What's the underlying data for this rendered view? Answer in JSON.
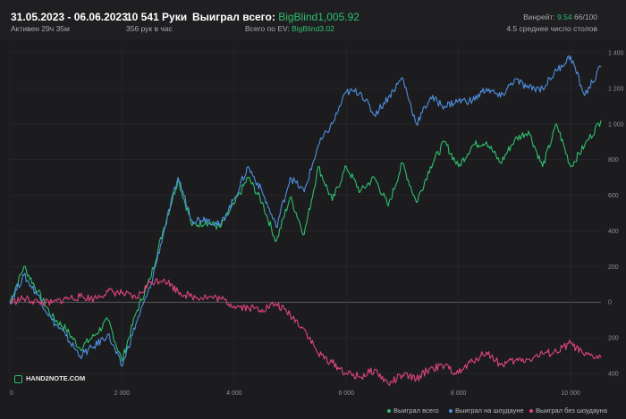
{
  "header": {
    "date_range": "31.05.2023 - 06.06.2023",
    "active": "Активен 29ч 35м",
    "hands": "10 541 Руки",
    "hands_rate": "356 рук в час",
    "won_label": "Выиграл всего:",
    "won_value": "BigBlind1,005.92",
    "ev_label": "Всего по EV:",
    "ev_value": "BigBlind3.02",
    "winrate_label": "Винрейт:",
    "winrate_value": "9.54",
    "winrate_rest": "66/100",
    "tables": "4.5 среднее число столов"
  },
  "logo_text": "HAND2NOTE.COM",
  "colors": {
    "total": "#2dbf6c",
    "showdown": "#4f8fe0",
    "no_showdown": "#e0457b",
    "background": "#1c1c1e"
  },
  "chart_data": {
    "type": "line",
    "xlim": [
      0,
      10541
    ],
    "ylim": [
      -450,
      1450
    ],
    "y_ticks": [
      -400,
      -200,
      0,
      200,
      400,
      600,
      800,
      1000,
      1200,
      1400
    ],
    "y_tick_labels": [
      "400",
      "200",
      "0",
      "200",
      "400",
      "600",
      "800",
      "1 000",
      "1 200",
      "1 400"
    ],
    "x_ticks": [
      0,
      2000,
      4000,
      6000,
      8000,
      10000
    ],
    "x_tick_labels": [
      "0",
      "2 000",
      "4 000",
      "6 000",
      "8 000",
      "10 000"
    ],
    "grid": true,
    "legend_position": "bottom-right",
    "series": [
      {
        "name": "Выиграл всего",
        "color": "#2dbf6c",
        "x": [
          0,
          250,
          500,
          750,
          1000,
          1250,
          1500,
          1750,
          2000,
          2250,
          2500,
          2750,
          3000,
          3250,
          3500,
          3750,
          4000,
          4250,
          4500,
          4750,
          5000,
          5250,
          5500,
          5750,
          6000,
          6250,
          6500,
          6750,
          7000,
          7250,
          7500,
          7750,
          8000,
          8250,
          8500,
          8750,
          9000,
          9250,
          9500,
          9750,
          10000,
          10250,
          10541
        ],
        "y": [
          0,
          200,
          60,
          -80,
          -150,
          -260,
          -190,
          -100,
          -330,
          -60,
          130,
          420,
          690,
          430,
          450,
          420,
          550,
          700,
          560,
          340,
          590,
          380,
          760,
          570,
          760,
          620,
          700,
          540,
          780,
          560,
          760,
          900,
          760,
          880,
          900,
          780,
          910,
          960,
          760,
          1000,
          760,
          880,
          1020
        ]
      },
      {
        "name": "Выиграл на шоудауне",
        "color": "#4f8fe0",
        "x": [
          0,
          250,
          500,
          750,
          1000,
          1250,
          1500,
          1750,
          2000,
          2250,
          2500,
          2750,
          3000,
          3250,
          3500,
          3750,
          4000,
          4250,
          4500,
          4750,
          5000,
          5250,
          5500,
          5750,
          6000,
          6250,
          6500,
          6750,
          7000,
          7250,
          7500,
          7750,
          8000,
          8250,
          8500,
          8750,
          9000,
          9250,
          9500,
          9750,
          10000,
          10250,
          10541
        ],
        "y": [
          0,
          150,
          40,
          -100,
          -190,
          -300,
          -250,
          -180,
          -360,
          -120,
          80,
          400,
          700,
          460,
          470,
          430,
          580,
          760,
          620,
          420,
          700,
          620,
          880,
          1000,
          1180,
          1180,
          1050,
          1150,
          1260,
          1000,
          1150,
          1100,
          1130,
          1130,
          1200,
          1150,
          1250,
          1200,
          1200,
          1300,
          1380,
          1160,
          1320
        ]
      },
      {
        "name": "Выиграл без шоудауна",
        "color": "#e0457b",
        "x": [
          0,
          250,
          500,
          750,
          1000,
          1250,
          1500,
          1750,
          2000,
          2250,
          2500,
          2750,
          3000,
          3250,
          3500,
          3750,
          4000,
          4250,
          4500,
          4750,
          5000,
          5250,
          5500,
          5750,
          6000,
          6250,
          6500,
          6750,
          7000,
          7250,
          7500,
          7750,
          8000,
          8250,
          8500,
          8750,
          9000,
          9250,
          9500,
          9750,
          10000,
          10250,
          10541
        ],
        "y": [
          0,
          20,
          0,
          -5,
          20,
          30,
          20,
          60,
          50,
          20,
          110,
          130,
          60,
          30,
          30,
          20,
          -20,
          -30,
          -40,
          -10,
          -70,
          -150,
          -290,
          -340,
          -400,
          -420,
          -380,
          -460,
          -410,
          -430,
          -370,
          -360,
          -400,
          -330,
          -280,
          -350,
          -330,
          -320,
          -290,
          -280,
          -230,
          -300,
          -310
        ]
      }
    ]
  }
}
